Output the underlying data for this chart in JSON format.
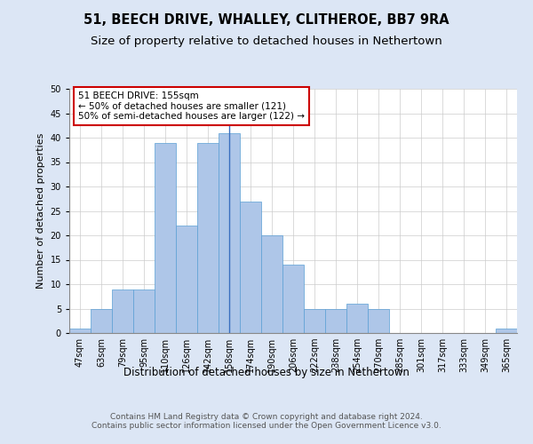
{
  "title": "51, BEECH DRIVE, WHALLEY, CLITHEROE, BB7 9RA",
  "subtitle": "Size of property relative to detached houses in Nethertown",
  "xlabel": "Distribution of detached houses by size in Nethertown",
  "ylabel": "Number of detached properties",
  "categories": [
    "47sqm",
    "63sqm",
    "79sqm",
    "95sqm",
    "110sqm",
    "126sqm",
    "142sqm",
    "158sqm",
    "174sqm",
    "190sqm",
    "206sqm",
    "222sqm",
    "238sqm",
    "254sqm",
    "270sqm",
    "285sqm",
    "301sqm",
    "317sqm",
    "333sqm",
    "349sqm",
    "365sqm"
  ],
  "values": [
    1,
    5,
    9,
    9,
    39,
    22,
    39,
    41,
    27,
    20,
    14,
    5,
    5,
    6,
    5,
    0,
    0,
    0,
    0,
    0,
    1
  ],
  "bar_color": "#aec6e8",
  "bar_edge_color": "#5a9fd4",
  "highlight_bar_index": 7,
  "highlight_line_color": "#3a6fbf",
  "annotation_text": "51 BEECH DRIVE: 155sqm\n← 50% of detached houses are smaller (121)\n50% of semi-detached houses are larger (122) →",
  "annotation_box_color": "#ffffff",
  "annotation_box_edge": "#cc0000",
  "ylim": [
    0,
    50
  ],
  "yticks": [
    0,
    5,
    10,
    15,
    20,
    25,
    30,
    35,
    40,
    45,
    50
  ],
  "background_color": "#dce6f5",
  "plot_bg_color": "#ffffff",
  "footer": "Contains HM Land Registry data © Crown copyright and database right 2024.\nContains public sector information licensed under the Open Government Licence v3.0.",
  "title_fontsize": 10.5,
  "subtitle_fontsize": 9.5,
  "xlabel_fontsize": 8.5,
  "ylabel_fontsize": 8,
  "tick_fontsize": 7,
  "footer_fontsize": 6.5,
  "annotation_fontsize": 7.5
}
